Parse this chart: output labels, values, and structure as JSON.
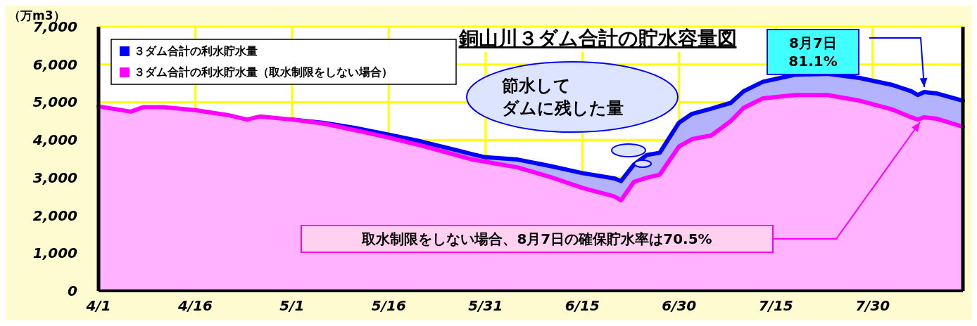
{
  "chart_data": {
    "type": "area",
    "title": "銅山川３ダム合計の貯水容量図",
    "ylabel": "（万m3）",
    "x": [
      "--04-01",
      "--04-06",
      "--04-08",
      "--04-11",
      "--04-16",
      "--04-21",
      "--04-24",
      "--04-26",
      "--05-01",
      "--05-06",
      "--05-11",
      "--05-16",
      "--05-21",
      "--05-26",
      "--05-29",
      "--05-31",
      "--06-05",
      "--06-10",
      "--06-15",
      "--06-20",
      "--06-21",
      "--06-23",
      "--06-25",
      "--06-27",
      "--06-30",
      "--07-02",
      "--07-05",
      "--07-08",
      "--07-10",
      "--07-13",
      "--07-18",
      "--07-23",
      "--07-28",
      "--08-02",
      "--08-05",
      "--08-06",
      "--08-07",
      "--08-09",
      "--08-13"
    ],
    "series": [
      {
        "name": "３ダム合計の利水貯水量",
        "color": "#0000ff",
        "values": [
          null,
          null,
          null,
          null,
          null,
          null,
          null,
          null,
          4540,
          4450,
          4310,
          4140,
          3960,
          3750,
          3620,
          3540,
          3480,
          3310,
          3120,
          2980,
          2910,
          3350,
          3600,
          3660,
          4460,
          4690,
          4830,
          4980,
          5290,
          5540,
          5730,
          5750,
          5640,
          5460,
          5290,
          5190,
          5270,
          5230,
          5040
        ]
      },
      {
        "name": "３ダム合計の利水貯水量（取水制限をしない場合）",
        "color": "#ff00ff",
        "values": [
          4890,
          4750,
          4870,
          4870,
          4790,
          4660,
          4540,
          4620,
          4540,
          4430,
          4250,
          4060,
          3850,
          3620,
          3480,
          3420,
          3270,
          3020,
          2730,
          2500,
          2400,
          2890,
          3000,
          3080,
          3830,
          4020,
          4120,
          4500,
          4850,
          5100,
          5190,
          5190,
          5040,
          4810,
          4600,
          4540,
          4600,
          4560,
          4350
        ]
      }
    ],
    "xlim": [
      "--04-01",
      "--08-13"
    ],
    "xticks": [
      {
        "value": "--04-01",
        "label": "4/1"
      },
      {
        "value": "--04-16",
        "label": "4/16"
      },
      {
        "value": "--05-01",
        "label": "5/1"
      },
      {
        "value": "--05-16",
        "label": "5/16"
      },
      {
        "value": "--05-31",
        "label": "5/31"
      },
      {
        "value": "--06-15",
        "label": "6/15"
      },
      {
        "value": "--06-30",
        "label": "6/30"
      },
      {
        "value": "--07-15",
        "label": "7/15"
      },
      {
        "value": "--07-30",
        "label": "7/30"
      }
    ],
    "ylim": [
      0,
      7000
    ],
    "yticks": [
      0,
      {
        "value": 1000,
        "label": "1,000"
      },
      {
        "value": 2000,
        "label": "2,000"
      },
      {
        "value": 3000,
        "label": "3,000"
      },
      {
        "value": 4000,
        "label": "4,000"
      },
      {
        "value": 5000,
        "label": "5,000"
      },
      {
        "value": 6000,
        "label": "6,000"
      },
      {
        "value": 7000,
        "label": "7,000"
      }
    ],
    "grid": true,
    "legend": "top left",
    "annotations": [
      "節水して",
      "ダムに残した量",
      "8月7日\n81.1%",
      "取水制限をしない場合、8月7日の確保貯水率は70.5%"
    ]
  }
}
